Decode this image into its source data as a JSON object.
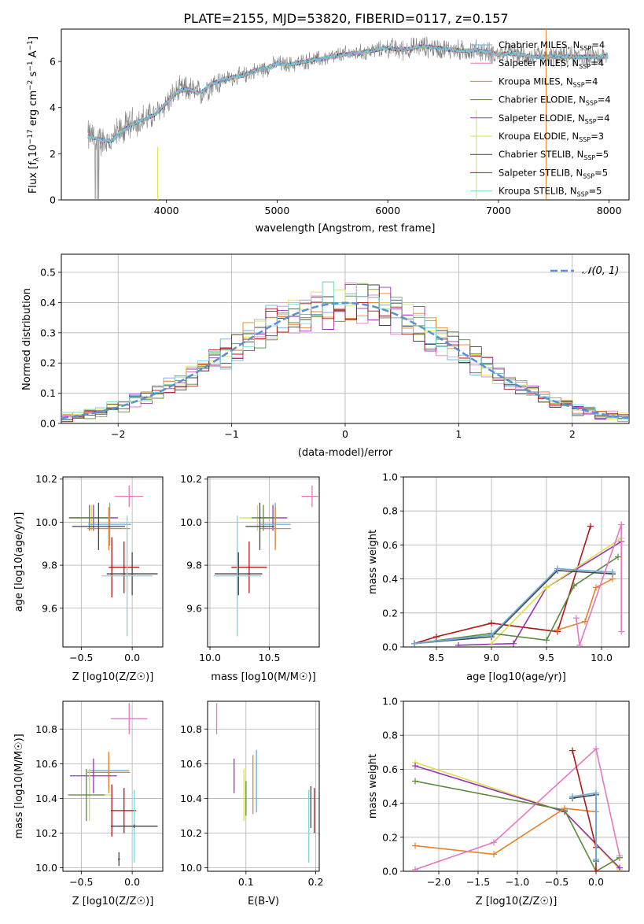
{
  "title": "PLATE=2155, MJD=53820, FIBERID=0117, z=0.157",
  "colors": {
    "chabrier_miles": "#6fa8dc",
    "salpeter_miles": "#e377c2",
    "kroupa_miles": "#e6832a",
    "chabrier_elodie": "#5a8a3a",
    "salpeter_elodie": "#9b30b8",
    "kroupa_elodie": "#d9e04c",
    "chabrier_stelib": "#444444",
    "salpeter_stelib": "#b01515",
    "kroupa_stelib": "#76d7d7",
    "normal": "#5b8fd6",
    "spectrum": "#808080"
  },
  "legend1": [
    {
      "key": "chabrier_miles",
      "pre": "Chabrier MILES, N",
      "post": "=4"
    },
    {
      "key": "salpeter_miles",
      "pre": "Salpeter MILES, N",
      "post": "=4"
    },
    {
      "key": "kroupa_miles",
      "pre": "Kroupa MILES, N",
      "post": "=4"
    },
    {
      "key": "chabrier_elodie",
      "pre": "Chabrier ELODIE, N",
      "post": "=4"
    },
    {
      "key": "salpeter_elodie",
      "pre": "Salpeter ELODIE, N",
      "post": "=4"
    },
    {
      "key": "kroupa_elodie",
      "pre": "Kroupa ELODIE, N",
      "post": "=3"
    },
    {
      "key": "chabrier_stelib",
      "pre": "Chabrier STELIB, N",
      "post": "=5"
    },
    {
      "key": "salpeter_stelib",
      "pre": "Salpeter STELIB, N",
      "post": "=5"
    },
    {
      "key": "kroupa_stelib",
      "pre": "Kroupa STELIB, N",
      "post": "=5"
    }
  ],
  "legend1_sub": "SSP",
  "legend2": {
    "label": "𝒩(0, 1)"
  },
  "chart_data": [
    {
      "type": "line",
      "id": "spectrum",
      "xlabel": "wavelength [Angstrom, rest frame]",
      "ylabel": "Flux [f",
      "ylabel_parts": [
        "Flux [f",
        "λ",
        "10",
        "−17",
        " erg cm",
        "−2",
        " s",
        "−1",
        " A",
        "−1",
        "]"
      ],
      "xlim": [
        3050,
        8180
      ],
      "ylim": [
        0,
        7.4
      ],
      "xticks": [
        4000,
        5000,
        6000,
        7000,
        8000
      ],
      "yticks": [
        0,
        2,
        4,
        6
      ],
      "x": [
        3300,
        3400,
        3500,
        3600,
        3700,
        3800,
        3900,
        4000,
        4100,
        4200,
        4300,
        4400,
        4500,
        4600,
        4700,
        4800,
        4900,
        5000,
        5100,
        5200,
        5300,
        5400,
        5500,
        5600,
        5700,
        5800,
        5900,
        6000,
        6100,
        6200,
        6300,
        6400,
        6500,
        6600,
        6700,
        6800,
        6900,
        7000,
        7100,
        7200,
        7300,
        7400
      ],
      "y": [
        2.75,
        2.6,
        2.55,
        3.0,
        3.3,
        3.5,
        3.7,
        4.2,
        4.7,
        4.8,
        4.6,
        5.0,
        5.2,
        5.3,
        5.4,
        5.6,
        5.7,
        5.9,
        5.85,
        5.95,
        6.05,
        6.1,
        6.2,
        6.3,
        6.35,
        6.4,
        6.5,
        6.6,
        6.5,
        6.55,
        6.65,
        6.6,
        6.55,
        6.5,
        6.45,
        6.5,
        6.4,
        6.3,
        6.35,
        6.3,
        6.2,
        6.2
      ]
    },
    {
      "type": "line",
      "id": "residuals",
      "xlabel": "(data-model)/error",
      "ylabel": "Normed distribution",
      "xlim": [
        -2.5,
        2.5
      ],
      "ylim": [
        0,
        0.56
      ],
      "xticks": [
        -2,
        -1,
        0,
        1,
        2
      ],
      "yticks": [
        0,
        0.1,
        0.2,
        0.3,
        0.4,
        0.5
      ],
      "xtick_labels": [
        "−2",
        "−1",
        "0",
        "1",
        "2"
      ],
      "ytick_labels": [
        "0.0",
        "0.1",
        "0.2",
        "0.3",
        "0.4",
        "0.5"
      ]
    },
    {
      "type": "scatter",
      "id": "z_age",
      "xlabel": "Z [log10(Z/Z☉)]",
      "ylabel": "age [log10(age/yr)]",
      "xlim": [
        -0.68,
        0.3
      ],
      "ylim": [
        9.42,
        10.21
      ],
      "xticks": [
        -0.5,
        0.0
      ],
      "yticks": [
        9.6,
        9.8,
        10.0,
        10.2
      ],
      "xtick_labels": [
        "−0.5",
        "0.0"
      ],
      "ytick_labels": [
        "9.6",
        "9.8",
        "10.0",
        "10.2"
      ],
      "points": [
        {
          "s": "salpeter_miles",
          "x": -0.03,
          "y": 10.12,
          "ex": 0.14,
          "ey": 0.05
        },
        {
          "s": "kroupa_elodie",
          "x": -0.4,
          "y": 10.02,
          "ex": 0.22,
          "ey": 0.06
        },
        {
          "s": "salpeter_elodie",
          "x": -0.38,
          "y": 10.02,
          "ex": 0.24,
          "ey": 0.06
        },
        {
          "s": "chabrier_elodie",
          "x": -0.42,
          "y": 10.02,
          "ex": 0.2,
          "ey": 0.06
        },
        {
          "s": "chabrier_miles",
          "x": -0.22,
          "y": 9.99,
          "ex": 0.21,
          "ey": 0.1
        },
        {
          "s": "kroupa_miles",
          "x": -0.23,
          "y": 9.97,
          "ex": 0.21,
          "ey": 0.1
        },
        {
          "s": "chabrier_stelib",
          "x": -0.33,
          "y": 9.98,
          "ex": 0.26,
          "ey": 0.11
        },
        {
          "s": "salpeter_stelib",
          "x": -0.08,
          "y": 9.79,
          "ex": 0.15,
          "ey": 0.12
        },
        {
          "s": "salpeter_stelib",
          "x": -0.2,
          "y": 9.79,
          "ex": 0.01,
          "ey": 0.14
        },
        {
          "s": "chabrier_stelib",
          "x": 0.0,
          "y": 9.76,
          "ex": 0.25,
          "ey": 0.1
        },
        {
          "s": "kroupa_stelib",
          "x": -0.05,
          "y": 9.75,
          "ex": 0.25,
          "ey": 0.28
        }
      ]
    },
    {
      "type": "scatter",
      "id": "mass_age",
      "xlabel": "mass [log10(M/M☉)]",
      "ylabel": "",
      "xlim": [
        9.98,
        10.92
      ],
      "ylim": [
        9.42,
        10.21
      ],
      "xticks": [
        10.0,
        10.5
      ],
      "yticks": [
        9.6,
        9.8,
        10.0,
        10.2
      ],
      "xtick_labels": [
        "10.0",
        "10.5"
      ],
      "ytick_labels": [
        "9.6",
        "9.8",
        "10.0",
        "10.2"
      ],
      "points": [
        {
          "s": "salpeter_miles",
          "x": 10.86,
          "y": 10.12,
          "ex": 0.09,
          "ey": 0.05
        },
        {
          "s": "kroupa_elodie",
          "x": 10.4,
          "y": 10.02,
          "ex": 0.15,
          "ey": 0.06
        },
        {
          "s": "salpeter_elodie",
          "x": 10.53,
          "y": 10.02,
          "ex": 0.12,
          "ey": 0.06
        },
        {
          "s": "chabrier_elodie",
          "x": 10.45,
          "y": 10.02,
          "ex": 0.1,
          "ey": 0.06
        },
        {
          "s": "chabrier_miles",
          "x": 10.55,
          "y": 9.99,
          "ex": 0.13,
          "ey": 0.1
        },
        {
          "s": "kroupa_miles",
          "x": 10.55,
          "y": 9.97,
          "ex": 0.13,
          "ey": 0.1
        },
        {
          "s": "chabrier_stelib",
          "x": 10.42,
          "y": 9.98,
          "ex": 0.12,
          "ey": 0.11
        },
        {
          "s": "salpeter_stelib",
          "x": 10.33,
          "y": 9.79,
          "ex": 0.15,
          "ey": 0.12
        },
        {
          "s": "chabrier_stelib",
          "x": 10.24,
          "y": 9.76,
          "ex": 0.2,
          "ey": 0.1
        },
        {
          "s": "kroupa_stelib",
          "x": 10.23,
          "y": 9.75,
          "ex": 0.2,
          "ey": 0.28
        }
      ]
    },
    {
      "type": "line",
      "id": "age_weight",
      "xlabel": "age [log10(age/yr)]",
      "ylabel": "mass weight",
      "xlim": [
        8.2,
        10.25
      ],
      "ylim": [
        0,
        1.0
      ],
      "xticks": [
        8.5,
        9.0,
        9.5,
        10.0
      ],
      "yticks": [
        0,
        0.2,
        0.4,
        0.6,
        0.8,
        1.0
      ],
      "xtick_labels": [
        "8.5",
        "9.0",
        "9.5",
        "10.0"
      ],
      "ytick_labels": [
        "0.0",
        "0.2",
        "0.4",
        "0.6",
        "0.8",
        "1.0"
      ],
      "series": [
        {
          "s": "salpeter_stelib",
          "x": [
            8.3,
            8.5,
            9.0,
            9.6,
            9.9
          ],
          "y": [
            0.02,
            0.06,
            0.14,
            0.09,
            0.71
          ]
        },
        {
          "s": "salpeter_elodie",
          "x": [
            8.7,
            9.2,
            9.5,
            10.18
          ],
          "y": [
            0.01,
            0.02,
            0.35,
            0.62
          ]
        },
        {
          "s": "kroupa_elodie",
          "x": [
            9.0,
            9.5,
            10.18
          ],
          "y": [
            0.02,
            0.35,
            0.64
          ]
        },
        {
          "s": "chabrier_elodie",
          "x": [
            8.3,
            9.0,
            9.5,
            9.75,
            10.15
          ],
          "y": [
            0.02,
            0.08,
            0.04,
            0.36,
            0.53
          ]
        },
        {
          "s": "chabrier_stelib",
          "x": [
            8.3,
            9.0,
            9.6,
            10.1
          ],
          "y": [
            0.02,
            0.06,
            0.45,
            0.43
          ]
        },
        {
          "s": "kroupa_stelib",
          "x": [
            8.3,
            9.0,
            9.6,
            10.1
          ],
          "y": [
            0.02,
            0.07,
            0.46,
            0.44
          ]
        },
        {
          "s": "chabrier_miles",
          "x": [
            8.3,
            9.0,
            9.6,
            10.1
          ],
          "y": [
            0.02,
            0.07,
            0.46,
            0.44
          ]
        },
        {
          "s": "kroupa_miles",
          "x": [
            9.6,
            9.85,
            9.95,
            10.1
          ],
          "y": [
            0.1,
            0.15,
            0.35,
            0.4
          ]
        },
        {
          "s": "salpeter_miles",
          "x": [
            9.77,
            9.8,
            10.18,
            10.18
          ],
          "y": [
            0.17,
            0.01,
            0.72,
            0.09
          ]
        }
      ]
    },
    {
      "type": "scatter",
      "id": "z_mass",
      "xlabel": "Z [log10(Z/Z☉)]",
      "ylabel": "mass [log10(M/M☉)]",
      "xlim": [
        -0.68,
        0.3
      ],
      "ylim": [
        9.98,
        10.96
      ],
      "xticks": [
        -0.5,
        0.0
      ],
      "yticks": [
        10.0,
        10.2,
        10.4,
        10.6,
        10.8
      ],
      "xtick_labels": [
        "−0.5",
        "0.0"
      ],
      "ytick_labels": [
        "10.0",
        "10.2",
        "10.4",
        "10.6",
        "10.8"
      ],
      "points": [
        {
          "s": "salpeter_miles",
          "x": -0.03,
          "y": 10.86,
          "ex": 0.18,
          "ey": 0.09
        },
        {
          "s": "chabrier_miles",
          "x": -0.23,
          "y": 10.56,
          "ex": 0.2,
          "ey": 0.1
        },
        {
          "s": "kroupa_miles",
          "x": -0.23,
          "y": 10.55,
          "ex": 0.21,
          "ey": 0.12
        },
        {
          "s": "salpeter_elodie",
          "x": -0.38,
          "y": 10.53,
          "ex": 0.23,
          "ey": 0.1
        },
        {
          "s": "kroupa_elodie",
          "x": -0.42,
          "y": 10.42,
          "ex": 0.21,
          "ey": 0.15
        },
        {
          "s": "chabrier_elodie",
          "x": -0.45,
          "y": 10.42,
          "ex": 0.18,
          "ey": 0.15
        },
        {
          "s": "salpeter_stelib",
          "x": -0.2,
          "y": 10.33,
          "ex": 0.01,
          "ey": 0.15
        },
        {
          "s": "salpeter_stelib",
          "x": -0.08,
          "y": 10.33,
          "ex": 0.12,
          "ey": 0.13
        },
        {
          "s": "kroupa_stelib",
          "x": 0.02,
          "y": 10.24,
          "ex": 0.23,
          "ey": 0.21
        },
        {
          "s": "chabrier_stelib",
          "x": 0.02,
          "y": 10.24,
          "ex": 0.23,
          "ey": 0.01
        },
        {
          "s": "chabrier_stelib",
          "x": -0.13,
          "y": 10.05,
          "ex": 0.01,
          "ey": 0.04
        }
      ]
    },
    {
      "type": "scatter",
      "id": "ebv_mass",
      "xlabel": "E(B-V)",
      "ylabel": "",
      "xlim": [
        0.045,
        0.205
      ],
      "ylim": [
        9.98,
        10.96
      ],
      "xticks": [
        0.1,
        0.2
      ],
      "yticks": [
        10.0,
        10.2,
        10.4,
        10.6,
        10.8
      ],
      "xtick_labels": [
        "0.1",
        "0.2"
      ],
      "ytick_labels": [
        "10.0",
        "10.2",
        "10.4",
        "10.6",
        "10.8"
      ],
      "points": [
        {
          "s": "salpeter_miles",
          "x": 0.058,
          "y": 10.86,
          "ex": 0,
          "ey": 0.09
        },
        {
          "s": "salpeter_elodie",
          "x": 0.083,
          "y": 10.53,
          "ex": 0,
          "ey": 0.1
        },
        {
          "s": "kroupa_elodie",
          "x": 0.097,
          "y": 10.42,
          "ex": 0,
          "ey": 0.15
        },
        {
          "s": "chabrier_elodie",
          "x": 0.1,
          "y": 10.4,
          "ex": 0,
          "ey": 0.1
        },
        {
          "s": "kroupa_miles",
          "x": 0.11,
          "y": 10.48,
          "ex": 0,
          "ey": 0.17
        },
        {
          "s": "chabrier_miles",
          "x": 0.115,
          "y": 10.5,
          "ex": 0,
          "ey": 0.18
        },
        {
          "s": "kroupa_stelib",
          "x": 0.19,
          "y": 10.24,
          "ex": 0,
          "ey": 0.21
        },
        {
          "s": "chabrier_stelib",
          "x": 0.193,
          "y": 10.35,
          "ex": 0,
          "ey": 0.12
        },
        {
          "s": "salpeter_stelib",
          "x": 0.198,
          "y": 10.33,
          "ex": 0,
          "ey": 0.13
        }
      ]
    },
    {
      "type": "line",
      "id": "z_weight",
      "xlabel": "Z [log10(Z/Z☉)]",
      "ylabel": "mass weight",
      "xlim": [
        -2.45,
        0.42
      ],
      "ylim": [
        0,
        1.0
      ],
      "xticks": [
        -2.0,
        -1.5,
        -1.0,
        -0.5,
        0.0
      ],
      "yticks": [
        0,
        0.2,
        0.4,
        0.6,
        0.8,
        1.0
      ],
      "xtick_labels": [
        "−2.0",
        "−1.5",
        "−1.0",
        "−0.5",
        "0.0"
      ],
      "ytick_labels": [
        "0.0",
        "0.2",
        "0.4",
        "0.6",
        "0.8",
        "1.0"
      ],
      "series": [
        {
          "s": "kroupa_elodie",
          "x": [
            -2.3,
            -0.4,
            0.3
          ],
          "y": [
            0.64,
            0.35,
            0.01
          ]
        },
        {
          "s": "salpeter_elodie",
          "x": [
            -2.3,
            -0.4,
            0.3
          ],
          "y": [
            0.62,
            0.35,
            0.02
          ]
        },
        {
          "s": "chabrier_elodie",
          "x": [
            -2.3,
            -0.4,
            0.0,
            0.3
          ],
          "y": [
            0.53,
            0.36,
            0.0,
            0.08
          ]
        },
        {
          "s": "kroupa_miles",
          "x": [
            -2.3,
            -1.3,
            -0.4,
            0.0
          ],
          "y": [
            0.15,
            0.1,
            0.37,
            0.35
          ]
        },
        {
          "s": "salpeter_miles",
          "x": [
            -2.3,
            -1.3,
            0.0,
            0.3
          ],
          "y": [
            0.01,
            0.17,
            0.72,
            0.09
          ]
        },
        {
          "s": "salpeter_stelib",
          "x": [
            -0.3,
            0.0,
            0.0
          ],
          "y": [
            0.71,
            0.14,
            0.0
          ]
        },
        {
          "s": "chabrier_stelib",
          "x": [
            -0.3,
            0.0,
            0.0
          ],
          "y": [
            0.43,
            0.45,
            0.06
          ]
        },
        {
          "s": "kroupa_stelib",
          "x": [
            -0.3,
            0.0,
            0.0
          ],
          "y": [
            0.44,
            0.46,
            0.07
          ]
        },
        {
          "s": "chabrier_miles",
          "x": [
            -0.3,
            0.0,
            0.0
          ],
          "y": [
            0.44,
            0.46,
            0.07
          ]
        }
      ]
    }
  ]
}
